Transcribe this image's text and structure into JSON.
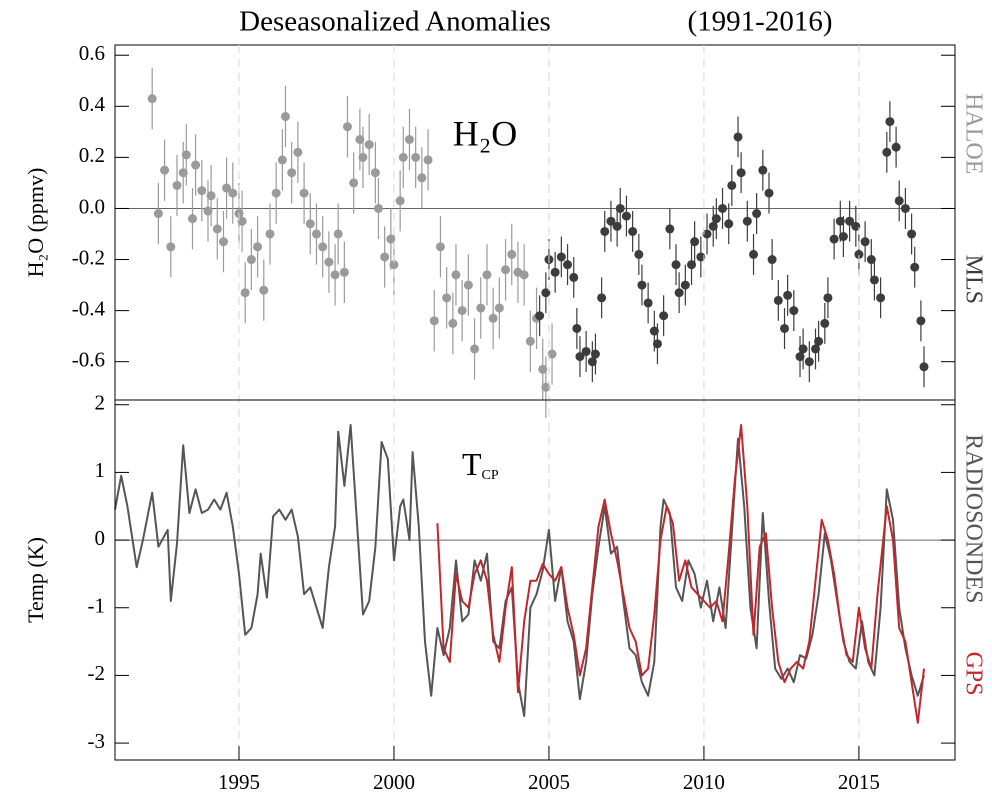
{
  "title": "Deseasonalized Anomalies",
  "subtitle": "(1991-2016)",
  "chart_data": [
    {
      "type": "scatter",
      "annotation": "H₂O",
      "ylabel": "H₂O (ppmv)",
      "xlim": [
        1991,
        2018.1
      ],
      "ylim": [
        -0.75,
        0.64
      ],
      "yticks": [
        -0.6,
        -0.4,
        -0.2,
        {
          "value": 0,
          "label": "0.0"
        },
        0.2,
        0.4,
        0.6
      ],
      "hline": 0,
      "series": [
        {
          "name": "HALOE",
          "color": "#9a9a9a",
          "error": 0.12,
          "x": [
            1992.2,
            1992.4,
            1992.6,
            1992.8,
            1993.0,
            1993.2,
            1993.3,
            1993.5,
            1993.6,
            1993.8,
            1994.0,
            1994.1,
            1994.3,
            1994.5,
            1994.6,
            1994.8,
            1995.0,
            1995.1,
            1995.2,
            1995.4,
            1995.6,
            1995.8,
            1996.0,
            1996.2,
            1996.4,
            1996.5,
            1996.7,
            1996.9,
            1997.1,
            1997.3,
            1997.5,
            1997.7,
            1997.9,
            1998.1,
            1998.2,
            1998.4,
            1998.5,
            1998.7,
            1998.9,
            1999.0,
            1999.2,
            1999.4,
            1999.5,
            1999.7,
            1999.9,
            2000.0,
            2000.2,
            2000.3,
            2000.5,
            2000.7,
            2000.9,
            2001.1,
            2001.3,
            2001.5,
            2001.7,
            2001.9,
            2002.0,
            2002.2,
            2002.4,
            2002.6,
            2002.8,
            2003.0,
            2003.2,
            2003.4,
            2003.6,
            2003.8,
            2004.0,
            2004.2,
            2004.4,
            2004.6,
            2004.8,
            2004.9,
            2005.1
          ],
          "values": [
            0.43,
            -0.02,
            0.15,
            -0.15,
            0.09,
            0.14,
            0.21,
            -0.04,
            0.17,
            0.07,
            -0.01,
            0.05,
            -0.08,
            -0.13,
            0.08,
            0.06,
            -0.02,
            -0.05,
            -0.33,
            -0.2,
            -0.15,
            -0.32,
            -0.1,
            0.06,
            0.19,
            0.36,
            0.14,
            0.22,
            0.06,
            -0.06,
            -0.1,
            -0.15,
            -0.21,
            -0.26,
            -0.1,
            -0.25,
            0.32,
            0.1,
            0.27,
            0.2,
            0.25,
            0.14,
            0.0,
            -0.19,
            -0.12,
            -0.22,
            0.03,
            0.2,
            0.27,
            0.2,
            0.12,
            0.19,
            -0.44,
            -0.15,
            -0.35,
            -0.45,
            -0.26,
            -0.4,
            -0.3,
            -0.55,
            -0.39,
            -0.26,
            -0.43,
            -0.39,
            -0.24,
            -0.18,
            -0.25,
            -0.26,
            -0.52,
            -0.43,
            -0.63,
            -0.7,
            -0.57
          ]
        },
        {
          "name": "MLS",
          "color": "#3c3c3c",
          "error": 0.08,
          "x": [
            2004.7,
            2004.9,
            2005.0,
            2005.2,
            2005.4,
            2005.6,
            2005.8,
            2005.9,
            2006.0,
            2006.2,
            2006.4,
            2006.5,
            2006.7,
            2006.8,
            2007.0,
            2007.2,
            2007.3,
            2007.5,
            2007.7,
            2007.9,
            2008.0,
            2008.2,
            2008.4,
            2008.5,
            2008.7,
            2008.9,
            2009.1,
            2009.2,
            2009.4,
            2009.6,
            2009.7,
            2009.9,
            2010.1,
            2010.3,
            2010.4,
            2010.6,
            2010.8,
            2010.9,
            2011.1,
            2011.2,
            2011.4,
            2011.6,
            2011.7,
            2011.9,
            2012.1,
            2012.2,
            2012.4,
            2012.6,
            2012.7,
            2012.9,
            2013.1,
            2013.2,
            2013.4,
            2013.6,
            2013.7,
            2013.9,
            2014.0,
            2014.2,
            2014.4,
            2014.5,
            2014.7,
            2014.9,
            2015.0,
            2015.2,
            2015.4,
            2015.5,
            2015.7,
            2015.9,
            2016.0,
            2016.2,
            2016.3,
            2016.5,
            2016.7,
            2016.8,
            2017.0,
            2017.1
          ],
          "values": [
            -0.42,
            -0.33,
            -0.2,
            -0.25,
            -0.19,
            -0.22,
            -0.27,
            -0.47,
            -0.58,
            -0.56,
            -0.6,
            -0.57,
            -0.35,
            -0.09,
            -0.05,
            -0.07,
            0.0,
            -0.03,
            -0.09,
            -0.18,
            -0.3,
            -0.37,
            -0.48,
            -0.53,
            -0.42,
            -0.08,
            -0.22,
            -0.33,
            -0.3,
            -0.22,
            -0.13,
            -0.19,
            -0.1,
            -0.07,
            -0.04,
            0.0,
            -0.06,
            0.09,
            0.28,
            0.14,
            -0.05,
            -0.18,
            -0.02,
            0.15,
            0.06,
            -0.2,
            -0.36,
            -0.47,
            -0.34,
            -0.4,
            -0.58,
            -0.55,
            -0.6,
            -0.55,
            -0.52,
            -0.45,
            -0.35,
            -0.12,
            -0.05,
            -0.11,
            -0.05,
            -0.07,
            -0.18,
            -0.13,
            -0.2,
            -0.28,
            -0.35,
            0.22,
            0.34,
            0.24,
            0.03,
            0.0,
            -0.1,
            -0.23,
            -0.44,
            -0.62
          ]
        }
      ]
    },
    {
      "type": "line",
      "annotation": "T",
      "annotation_subscript": "CP",
      "ylabel": "Temp (K)",
      "xlim": [
        1991,
        2018.1
      ],
      "ylim": [
        -3.25,
        2.07
      ],
      "xticks": [
        1995,
        2000,
        2005,
        2010,
        2015
      ],
      "yticks": [
        -3,
        -2,
        -1,
        0,
        1,
        2
      ],
      "hline": 0,
      "series": [
        {
          "name": "RADIOSONDES",
          "color": "#555555",
          "x": [
            1991.0,
            1991.2,
            1991.4,
            1991.7,
            1991.9,
            1992.2,
            1992.4,
            1992.7,
            1992.8,
            1993.0,
            1993.2,
            1993.4,
            1993.6,
            1993.8,
            1994.0,
            1994.2,
            1994.4,
            1994.6,
            1994.8,
            1995.0,
            1995.2,
            1995.4,
            1995.6,
            1995.7,
            1995.9,
            1996.1,
            1996.3,
            1996.5,
            1996.7,
            1996.9,
            1997.1,
            1997.3,
            1997.5,
            1997.7,
            1997.9,
            1998.1,
            1998.2,
            1998.4,
            1998.6,
            1998.8,
            1999.0,
            1999.2,
            1999.4,
            1999.6,
            1999.8,
            2000.0,
            2000.2,
            2000.3,
            2000.5,
            2000.6,
            2000.8,
            2001.0,
            2001.2,
            2001.4,
            2001.6,
            2001.8,
            2002.0,
            2002.2,
            2002.4,
            2002.6,
            2002.8,
            2003.0,
            2003.2,
            2003.4,
            2003.6,
            2003.8,
            2004.0,
            2004.2,
            2004.4,
            2004.6,
            2004.8,
            2005.0,
            2005.2,
            2005.4,
            2005.6,
            2005.8,
            2006.0,
            2006.2,
            2006.4,
            2006.6,
            2006.8,
            2007.0,
            2007.2,
            2007.4,
            2007.6,
            2007.8,
            2008.0,
            2008.2,
            2008.4,
            2008.6,
            2008.7,
            2008.9,
            2009.1,
            2009.3,
            2009.5,
            2009.7,
            2009.9,
            2010.1,
            2010.3,
            2010.5,
            2010.7,
            2010.9,
            2011.1,
            2011.3,
            2011.5,
            2011.7,
            2011.9,
            2012.1,
            2012.3,
            2012.5,
            2012.7,
            2012.9,
            2013.1,
            2013.3,
            2013.5,
            2013.7,
            2013.9,
            2014.1,
            2014.3,
            2014.5,
            2014.7,
            2014.9,
            2015.1,
            2015.3,
            2015.5,
            2015.7,
            2015.9,
            2016.1,
            2016.3,
            2016.5,
            2016.7,
            2016.9,
            2017.1
          ],
          "values": [
            0.45,
            0.95,
            0.5,
            -0.4,
            0.0,
            0.7,
            -0.1,
            0.15,
            -0.9,
            -0.05,
            1.4,
            0.4,
            0.75,
            0.4,
            0.45,
            0.6,
            0.45,
            0.7,
            0.2,
            -0.5,
            -1.4,
            -1.3,
            -0.8,
            -0.2,
            -0.85,
            0.35,
            0.45,
            0.3,
            0.45,
            0.05,
            -0.8,
            -0.7,
            -1.0,
            -1.3,
            -0.4,
            0.2,
            1.6,
            0.8,
            1.7,
            0.3,
            -1.1,
            -0.9,
            -0.1,
            1.45,
            1.2,
            -0.3,
            0.5,
            0.6,
            0.0,
            1.3,
            0.2,
            -1.5,
            -2.3,
            -1.3,
            -1.7,
            -1.3,
            -0.3,
            -1.2,
            -1.1,
            -0.3,
            -0.6,
            -0.2,
            -1.5,
            -1.6,
            -0.9,
            -0.7,
            -2.1,
            -2.6,
            -1.0,
            -0.8,
            -0.45,
            0.15,
            -0.9,
            -0.4,
            -1.2,
            -1.5,
            -2.35,
            -1.8,
            -0.8,
            -0.1,
            0.5,
            -0.2,
            -0.1,
            -0.9,
            -1.6,
            -1.7,
            -2.1,
            -2.3,
            -1.8,
            0.2,
            0.6,
            0.4,
            -0.7,
            -0.9,
            -0.3,
            -0.5,
            -1.0,
            -0.6,
            -1.2,
            -0.7,
            -1.3,
            0.1,
            1.5,
            0.5,
            -1.0,
            -1.6,
            0.4,
            -0.9,
            -1.9,
            -2.05,
            -1.9,
            -2.1,
            -1.7,
            -1.75,
            -1.4,
            -0.8,
            0.1,
            -0.3,
            -0.9,
            -1.5,
            -1.8,
            -1.9,
            -1.2,
            -1.8,
            -2.0,
            -1.0,
            0.75,
            0.3,
            -1.0,
            -1.6,
            -2.0,
            -2.3,
            -2.0
          ]
        },
        {
          "name": "GPS",
          "color": "#c1272d",
          "x": [
            2001.4,
            2001.6,
            2001.8,
            2002.0,
            2002.2,
            2002.4,
            2002.6,
            2002.8,
            2003.0,
            2003.2,
            2003.4,
            2003.6,
            2003.8,
            2004.0,
            2004.2,
            2004.4,
            2004.6,
            2004.8,
            2005.0,
            2005.2,
            2005.4,
            2005.6,
            2005.8,
            2006.0,
            2006.2,
            2006.4,
            2006.6,
            2006.8,
            2007.0,
            2007.2,
            2007.4,
            2007.6,
            2007.8,
            2008.0,
            2008.2,
            2008.4,
            2008.6,
            2008.8,
            2009.0,
            2009.2,
            2009.4,
            2009.6,
            2009.8,
            2010.0,
            2010.2,
            2010.4,
            2010.6,
            2010.8,
            2011.0,
            2011.2,
            2011.4,
            2011.6,
            2011.8,
            2012.0,
            2012.2,
            2012.4,
            2012.6,
            2012.8,
            2013.0,
            2013.2,
            2013.4,
            2013.6,
            2013.8,
            2014.0,
            2014.2,
            2014.4,
            2014.6,
            2014.8,
            2015.0,
            2015.2,
            2015.4,
            2015.6,
            2015.9,
            2016.1,
            2016.3,
            2016.5,
            2016.7,
            2016.9,
            2017.1
          ],
          "values": [
            0.25,
            -1.6,
            -1.8,
            -0.5,
            -0.9,
            -1.0,
            -0.5,
            -0.3,
            -0.6,
            -1.4,
            -1.8,
            -1.0,
            -0.4,
            -2.25,
            -1.2,
            -0.6,
            -0.6,
            -0.35,
            -0.5,
            -0.6,
            -0.4,
            -1.0,
            -1.4,
            -2.0,
            -1.6,
            -0.7,
            0.2,
            0.6,
            0.1,
            -0.3,
            -0.8,
            -1.3,
            -1.5,
            -2.0,
            -1.9,
            -1.1,
            0.0,
            0.5,
            0.25,
            -0.6,
            -0.3,
            -0.7,
            -0.8,
            -0.9,
            -1.0,
            -0.9,
            -1.2,
            -0.2,
            0.9,
            1.7,
            0.5,
            -1.4,
            -0.1,
            0.1,
            -1.0,
            -1.8,
            -2.1,
            -1.9,
            -1.8,
            -1.9,
            -1.5,
            -0.6,
            0.3,
            0.0,
            -0.5,
            -1.2,
            -1.7,
            -1.8,
            -1.0,
            -1.6,
            -1.9,
            -0.8,
            0.5,
            0.0,
            -1.3,
            -1.5,
            -2.1,
            -2.7,
            -1.9
          ]
        }
      ]
    }
  ]
}
